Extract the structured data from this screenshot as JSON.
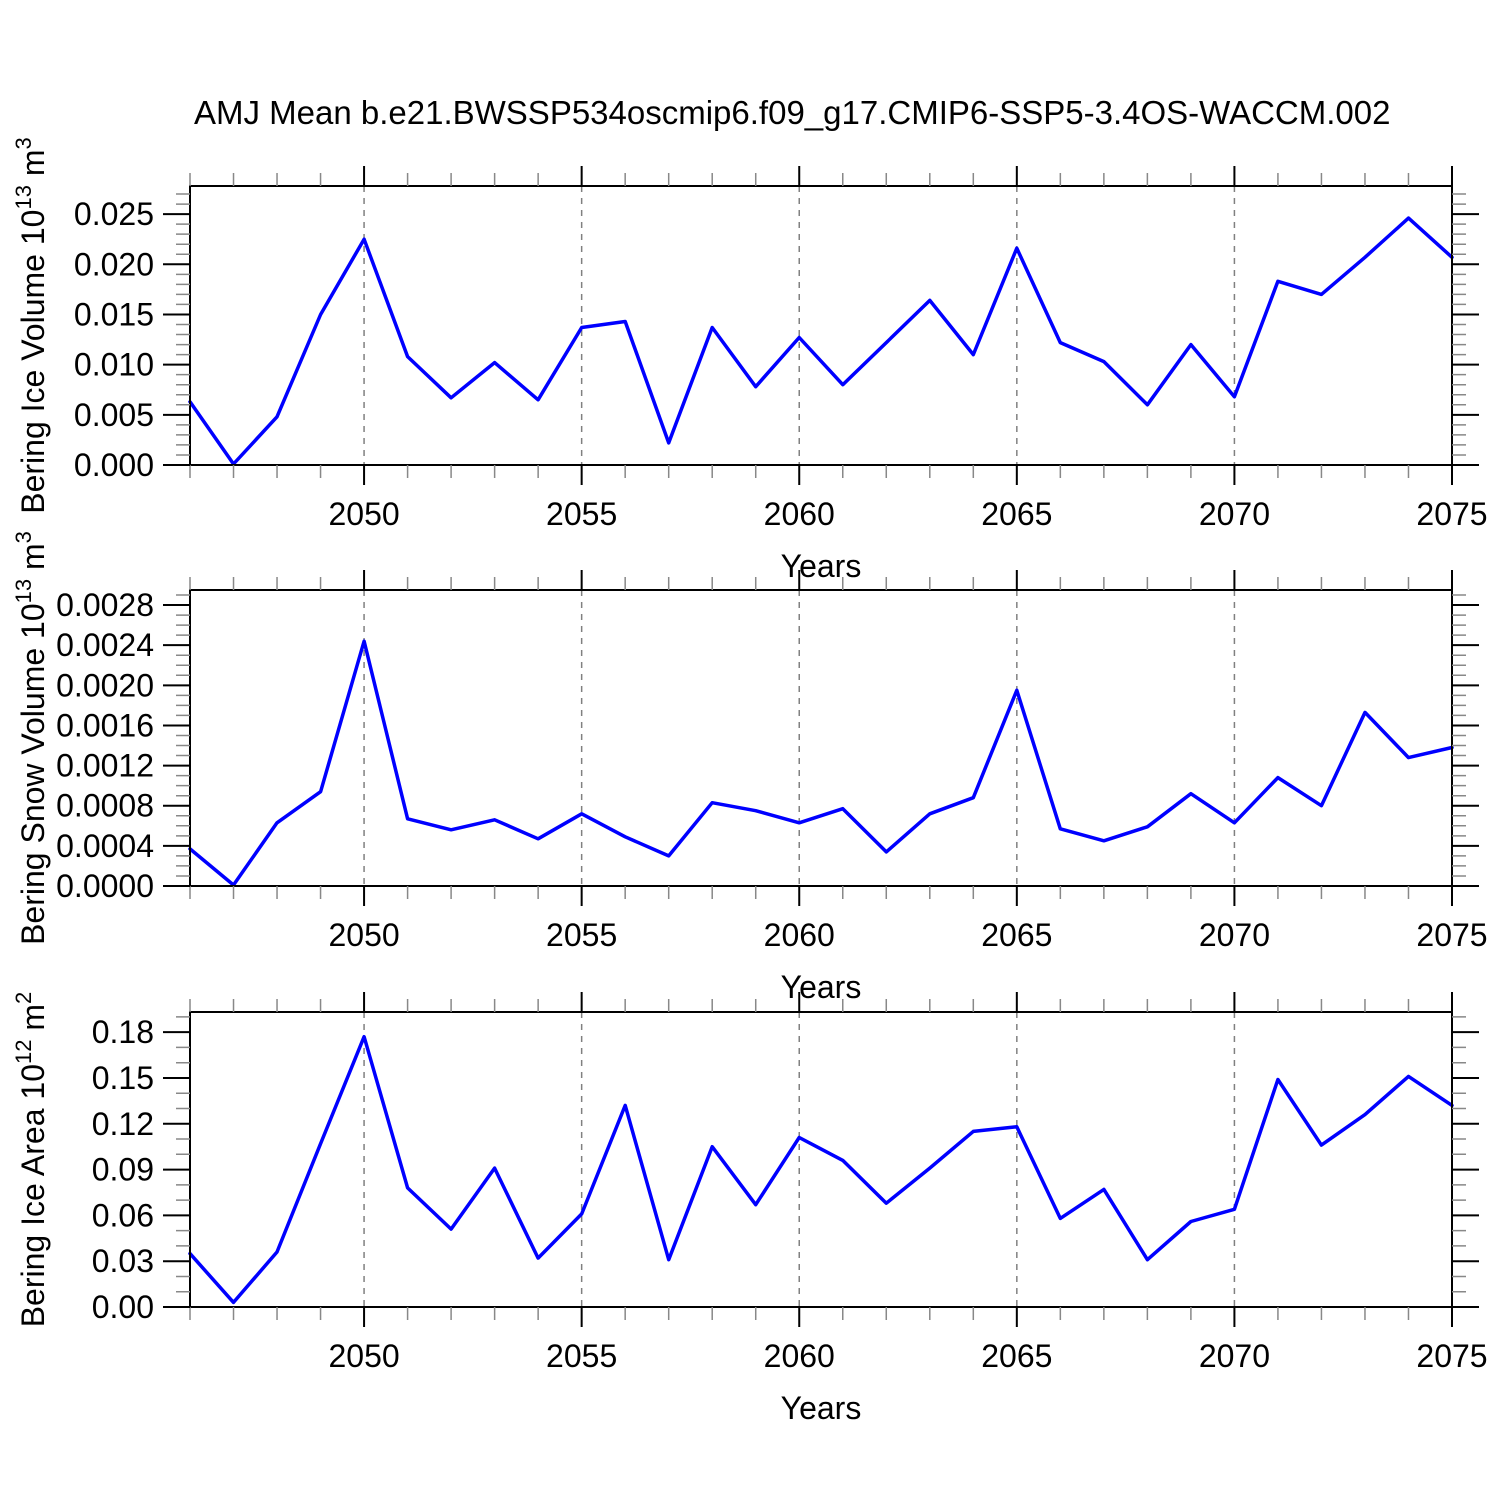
{
  "title": "AMJ Mean b.e21.BWSSP534oscmip6.f09_g17.CMIP6-SSP5-3.4OS-WACCM.002",
  "colors": {
    "line": "#0000ff",
    "axis": "#000000",
    "minor_tick": "#888888",
    "grid": "#808080",
    "text": "#000000",
    "background": "#ffffff"
  },
  "chart_data": [
    {
      "type": "line",
      "ylabel": "Bering Ice Volume 10^{13} m^{3}",
      "xlabel": "Years",
      "x": [
        2046,
        2047,
        2048,
        2049,
        2050,
        2051,
        2052,
        2053,
        2054,
        2055,
        2056,
        2057,
        2058,
        2059,
        2060,
        2061,
        2062,
        2063,
        2064,
        2065,
        2066,
        2067,
        2068,
        2069,
        2070,
        2071,
        2072,
        2073,
        2074,
        2075
      ],
      "values": [
        0.0063,
        0.0001,
        0.0048,
        0.015,
        0.0225,
        0.0108,
        0.0067,
        0.0102,
        0.0065,
        0.0137,
        0.0143,
        0.0022,
        0.0137,
        0.0078,
        0.0127,
        0.008,
        0.0122,
        0.0164,
        0.011,
        0.0216,
        0.0122,
        0.0103,
        0.006,
        0.012,
        0.0068,
        0.0183,
        0.017,
        0.0207,
        0.0246,
        0.0207
      ],
      "xlim": [
        2046,
        2075
      ],
      "ylim": [
        0,
        0.0278
      ],
      "ytick_step": 0.005,
      "ytick_minor_step": 0.001,
      "ytick_labels": [
        "0.000",
        "0.005",
        "0.010",
        "0.015",
        "0.020",
        "0.025"
      ],
      "xticks": [
        2050,
        2055,
        2060,
        2065,
        2070,
        2075
      ],
      "xtick_labels": [
        "2050",
        "2055",
        "2060",
        "2065",
        "2070",
        "2075"
      ],
      "xtick_minor_step": 1,
      "grid_x": [
        2050,
        2055,
        2060,
        2065,
        2070
      ],
      "grid_style": "dashed",
      "legend": "none"
    },
    {
      "type": "line",
      "ylabel": "Bering Snow Volume 10^{13} m^{3}",
      "xlabel": "Years",
      "x": [
        2046,
        2047,
        2048,
        2049,
        2050,
        2051,
        2052,
        2053,
        2054,
        2055,
        2056,
        2057,
        2058,
        2059,
        2060,
        2061,
        2062,
        2063,
        2064,
        2065,
        2066,
        2067,
        2068,
        2069,
        2070,
        2071,
        2072,
        2073,
        2074,
        2075
      ],
      "values": [
        0.00037,
        1e-05,
        0.00063,
        0.00094,
        0.00244,
        0.00067,
        0.00056,
        0.00066,
        0.00047,
        0.00072,
        0.00049,
        0.0003,
        0.00083,
        0.00075,
        0.00063,
        0.00077,
        0.00034,
        0.00072,
        0.00088,
        0.00195,
        0.00057,
        0.00045,
        0.00059,
        0.00092,
        0.00063,
        0.00108,
        0.0008,
        0.00173,
        0.00128,
        0.00138
      ],
      "xlim": [
        2046,
        2075
      ],
      "ylim": [
        0,
        0.00295
      ],
      "ytick_step": 0.0004,
      "ytick_minor_step": 0.0001,
      "ytick_labels": [
        "0.0000",
        "0.0004",
        "0.0008",
        "0.0012",
        "0.0016",
        "0.0020",
        "0.0024",
        "0.0028"
      ],
      "xticks": [
        2050,
        2055,
        2060,
        2065,
        2070,
        2075
      ],
      "xtick_labels": [
        "2050",
        "2055",
        "2060",
        "2065",
        "2070",
        "2075"
      ],
      "xtick_minor_step": 1,
      "grid_x": [
        2050,
        2055,
        2060,
        2065,
        2070
      ],
      "grid_style": "dashed",
      "legend": "none"
    },
    {
      "type": "line",
      "ylabel": "Bering Ice Area 10^{12} m^{2}",
      "xlabel": "Years",
      "x": [
        2046,
        2047,
        2048,
        2049,
        2050,
        2051,
        2052,
        2053,
        2054,
        2055,
        2056,
        2057,
        2058,
        2059,
        2060,
        2061,
        2062,
        2063,
        2064,
        2065,
        2066,
        2067,
        2068,
        2069,
        2070,
        2071,
        2072,
        2073,
        2074,
        2075
      ],
      "values": [
        0.035,
        0.003,
        0.036,
        0.107,
        0.177,
        0.078,
        0.051,
        0.091,
        0.032,
        0.061,
        0.132,
        0.031,
        0.105,
        0.067,
        0.111,
        0.096,
        0.068,
        0.091,
        0.115,
        0.118,
        0.058,
        0.077,
        0.031,
        0.056,
        0.064,
        0.149,
        0.106,
        0.126,
        0.151,
        0.132
      ],
      "xlim": [
        2046,
        2075
      ],
      "ylim": [
        0,
        0.1932
      ],
      "ytick_step": 0.03,
      "ytick_minor_step": 0.01,
      "ytick_labels": [
        "0.00",
        "0.03",
        "0.06",
        "0.09",
        "0.12",
        "0.15",
        "0.18"
      ],
      "xticks": [
        2050,
        2055,
        2060,
        2065,
        2070,
        2075
      ],
      "xtick_labels": [
        "2050",
        "2055",
        "2060",
        "2065",
        "2070",
        "2075"
      ],
      "xtick_minor_step": 1,
      "grid_x": [
        2050,
        2055,
        2060,
        2065,
        2070
      ],
      "grid_style": "dashed",
      "legend": "none"
    }
  ]
}
